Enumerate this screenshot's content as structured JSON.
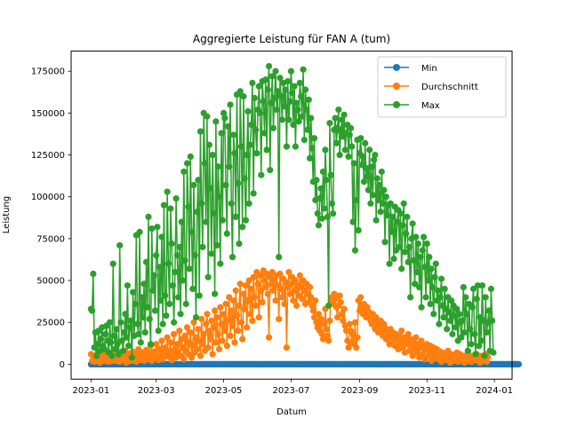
{
  "chart_data": {
    "type": "line",
    "title": "Aggregierte Leistung für FAN A (tum)",
    "xlabel": "Datum",
    "ylabel": "Leistung",
    "xlim": [
      "2022-12-14",
      "2024-01-17"
    ],
    "ylim": [
      -8900,
      187000
    ],
    "x_ticks": [
      "2023-01",
      "2023-03",
      "2023-05",
      "2023-07",
      "2023-09",
      "2023-11",
      "2024-01"
    ],
    "y_ticks": [
      0,
      25000,
      50000,
      75000,
      100000,
      125000,
      150000,
      175000
    ],
    "y_tick_labels": [
      "0",
      "25000",
      "50000",
      "75000",
      "100000",
      "125000",
      "150000",
      "175000"
    ],
    "grid": false,
    "legend_position": "top-right",
    "markers": "circle",
    "x_start": "2023-01-01",
    "x_end": "2023-12-31",
    "series": [
      {
        "name": "Min",
        "color": "#1f77b4",
        "values": [
          0,
          0,
          0,
          0,
          0,
          0,
          0,
          0,
          0,
          0,
          0,
          0,
          0,
          0,
          0,
          0,
          0,
          0,
          0,
          0,
          0,
          0,
          0,
          0,
          0,
          0,
          0,
          0,
          0,
          0,
          0,
          0,
          0,
          0,
          0,
          0,
          0,
          0,
          0,
          0,
          0,
          0,
          0,
          0,
          0,
          0,
          0,
          0,
          0,
          0,
          0,
          0,
          0,
          0,
          0,
          0,
          0,
          0,
          0,
          0,
          0,
          0,
          0,
          0,
          0,
          0,
          0,
          0,
          0,
          0,
          0,
          0,
          0,
          0,
          0,
          0,
          0,
          0,
          0,
          0,
          0,
          0,
          0,
          0,
          0,
          0,
          0,
          0,
          0,
          0,
          0,
          0,
          0,
          0,
          0,
          0,
          0,
          0,
          0,
          0,
          0,
          0,
          0,
          0,
          0,
          0,
          0,
          0,
          0,
          0,
          0,
          0,
          0,
          0,
          0,
          0,
          0,
          0,
          0,
          0,
          0,
          0,
          0,
          0,
          0,
          0,
          0,
          0,
          0,
          0,
          0,
          0,
          0,
          0,
          0,
          0,
          0,
          0,
          0,
          0,
          0,
          0,
          0,
          0,
          0,
          0,
          0,
          0,
          0,
          0,
          0,
          0,
          0,
          0,
          0,
          0,
          0,
          0,
          0,
          0,
          0,
          0,
          0,
          0,
          0,
          0,
          0,
          0,
          0,
          0,
          0,
          0,
          0,
          0,
          0,
          0,
          0,
          0,
          0,
          0,
          0,
          0,
          0,
          0,
          0,
          0,
          0,
          0,
          0,
          0,
          0,
          0,
          0,
          0,
          0,
          0,
          0,
          0,
          0,
          0,
          0,
          0,
          0,
          0,
          0,
          0,
          0,
          0,
          0,
          0,
          0,
          0,
          0,
          0,
          0,
          0,
          0,
          0,
          0,
          0,
          0,
          0,
          0,
          0,
          0,
          0,
          0,
          0,
          0,
          0,
          0,
          0,
          0,
          0,
          0,
          0,
          0,
          0,
          0,
          0,
          0,
          0,
          0,
          0,
          0,
          0,
          0,
          0,
          0,
          0,
          0,
          0,
          0,
          0,
          0,
          0,
          0,
          0,
          0,
          0,
          0,
          0,
          0,
          0,
          0,
          0,
          0,
          0,
          0,
          0,
          0,
          0,
          0,
          0,
          0,
          0,
          0,
          0,
          0,
          0,
          0,
          0,
          0,
          0,
          0,
          0,
          0,
          0,
          0,
          0,
          0,
          0,
          0,
          0,
          0,
          0,
          0,
          0,
          0,
          0,
          0,
          0,
          0,
          0,
          0,
          0,
          0,
          0,
          0,
          0,
          0,
          0,
          0,
          0,
          0,
          0,
          0,
          0,
          0,
          0,
          0,
          0,
          0,
          0,
          0,
          0,
          0,
          0,
          0,
          0,
          0,
          0,
          0,
          0,
          0,
          0,
          0,
          0,
          0,
          0,
          0,
          0,
          0,
          0,
          0,
          0,
          0,
          0,
          0,
          0,
          0,
          0,
          0,
          0,
          0,
          0,
          0,
          0,
          0,
          0,
          0,
          0,
          0,
          0,
          0,
          0,
          0,
          0,
          0,
          0,
          0,
          0,
          0,
          0,
          0,
          0,
          0,
          0,
          0,
          0,
          0,
          0,
          0,
          0,
          0,
          0,
          0,
          0
        ]
      },
      {
        "name": "Durchschnitt",
        "color": "#ff7f0e",
        "values": [
          6000,
          2000,
          5000,
          1500,
          4000,
          3000,
          7000,
          2500,
          1000,
          4500,
          6000,
          3000,
          2000,
          5000,
          8000,
          3500,
          1500,
          6500,
          4000,
          2000,
          5500,
          9000,
          3000,
          2000,
          4000,
          7000,
          1500,
          3500,
          6000,
          2500,
          5000,
          8000,
          1000,
          4000,
          3000,
          6500,
          2000,
          5500,
          7500,
          3000,
          4500,
          1500,
          6000,
          9000,
          2500,
          4000,
          7000,
          3500,
          2000,
          5000,
          8500,
          3000,
          6000,
          4500,
          11000,
          2000,
          5000,
          7500,
          3500,
          12000,
          4000,
          2500,
          9000,
          6000,
          14000,
          3000,
          7000,
          10000,
          5000,
          16000,
          4500,
          8000,
          13000,
          2500,
          6000,
          18000,
          9000,
          4000,
          12000,
          7000,
          20000,
          5000,
          15000,
          10000,
          3000,
          17000,
          8000,
          22000,
          6000,
          13000,
          19000,
          4000,
          11000,
          25000,
          7000,
          16000,
          9000,
          21000,
          14000,
          5000,
          27000,
          12000,
          18000,
          8000,
          24000,
          30000,
          10000,
          20000,
          15000,
          26000,
          6000,
          22000,
          32000,
          13000,
          28000,
          18000,
          9000,
          34000,
          24000,
          14000,
          30000,
          20000,
          36000,
          11000,
          26000,
          40000,
          17000,
          32000,
          23000,
          38000,
          13000,
          44000,
          29000,
          20000,
          35000,
          48000,
          25000,
          15000,
          42000,
          33000,
          47000,
          22000,
          38000,
          50000,
          30000,
          45000,
          26000,
          52000,
          40000,
          35000,
          55000,
          48000,
          28000,
          53000,
          44000,
          37000,
          56000,
          50000,
          46000,
          54000,
          42000,
          16000,
          52000,
          48000,
          55000,
          44000,
          50000,
          38000,
          53000,
          47000,
          27000,
          54000,
          45000,
          40000,
          51000,
          36000,
          49000,
          10000,
          46000,
          55000,
          42000,
          48000,
          52000,
          38000,
          44000,
          50000,
          35000,
          47000,
          41000,
          53000,
          46000,
          39000,
          50000,
          44000,
          36000,
          48000,
          42000,
          37000,
          46000,
          40000,
          35000,
          32000,
          28000,
          38000,
          25000,
          22000,
          30000,
          20000,
          27000,
          18000,
          15000,
          24000,
          33000,
          21000,
          17000,
          14000,
          26000,
          38000,
          40000,
          36000,
          42000,
          39000,
          34000,
          28000,
          35000,
          41000,
          37000,
          30000,
          26000,
          33000,
          23000,
          20000,
          14000,
          10000,
          24000,
          20000,
          13000,
          18000,
          12000,
          25000,
          10000,
          16000,
          38000,
          32000,
          40000,
          35000,
          30000,
          36000,
          33000,
          28000,
          34000,
          29000,
          31000,
          26000,
          24000,
          30000,
          27000,
          21000,
          28000,
          25000,
          19000,
          23000,
          26000,
          20000,
          17000,
          24000,
          22000,
          15000,
          20000,
          18000,
          12000,
          21000,
          16000,
          19000,
          14000,
          11000,
          18000,
          15000,
          9000,
          17000,
          13000,
          20000,
          10000,
          16000,
          7000,
          14000,
          12000,
          18000,
          8000,
          15000,
          11000,
          5000,
          13000,
          9000,
          16000,
          7000,
          12000,
          4000,
          10000,
          14000,
          6000,
          11000,
          3000,
          9000,
          12000,
          5000,
          8000,
          11000,
          2000,
          7000,
          10000,
          4000,
          6000,
          9000,
          3000,
          8000,
          5000,
          1500,
          7000,
          4000,
          6000,
          2500,
          5000,
          8000,
          3000,
          1000,
          6000,
          4000,
          2000,
          5000,
          3000,
          7000,
          1500,
          4000,
          6000,
          2000,
          3500,
          5000,
          1000,
          4500,
          3000,
          6000,
          2000,
          4000,
          1500,
          5000,
          3000,
          2500,
          4000,
          6000,
          2000,
          3500,
          1000,
          5000,
          4000,
          3000,
          2000,
          6000,
          1500,
          4500
        ]
      },
      {
        "name": "Max",
        "color": "#2ca02c",
        "values": [
          33000,
          32000,
          54000,
          10000,
          19000,
          5000,
          12000,
          20000,
          8000,
          15000,
          22000,
          11000,
          9000,
          18000,
          23000,
          14000,
          7000,
          25000,
          13000,
          5000,
          60000,
          17000,
          9000,
          21000,
          12000,
          6000,
          71000,
          25000,
          14000,
          8000,
          19000,
          30000,
          16000,
          47000,
          11000,
          22000,
          26000,
          4000,
          43000,
          17000,
          36000,
          77000,
          24000,
          18000,
          79000,
          13000,
          40000,
          28000,
          48000,
          19000,
          61000,
          34000,
          88000,
          27000,
          12000,
          81000,
          44000,
          53000,
          32000,
          65000,
          82000,
          20000,
          58000,
          38000,
          76000,
          24000,
          95000,
          41000,
          29000,
          103000,
          60000,
          36000,
          93000,
          72000,
          47000,
          25000,
          55000,
          99000,
          65000,
          40000,
          70000,
          30000,
          85000,
          50000,
          115000,
          62000,
          36000,
          120000,
          94000,
          57000,
          124000,
          79000,
          45000,
          107000,
          65000,
          28000,
          91000,
          110000,
          41000,
          139000,
          96000,
          70000,
          150000,
          120000,
          85000,
          148000,
          52000,
          131000,
          105000,
          66000,
          125000,
          90000,
          42000,
          145000,
          71000,
          118000,
          100000,
          60000,
          138000,
          86000,
          150000,
          147000,
          107000,
          78000,
          142000,
          118000,
          155000,
          96000,
          64000,
          137000,
          126000,
          88000,
          161000,
          108000,
          72000,
          163000,
          130000,
          82000,
          160000,
          111000,
          86000,
          125000,
          151000,
          96000,
          131000,
          143000,
          168000,
          102000,
          159000,
          140000,
          126000,
          152000,
          166000,
          150000,
          113000,
          169000,
          157000,
          138000,
          170000,
          128000,
          164000,
          178000,
          116000,
          156000,
          172000,
          141000,
          159000,
          175000,
          152000,
          163000,
          64000,
          171000,
          160000,
          146000,
          168000,
          154000,
          164000,
          130000,
          169000,
          146000,
          157000,
          175000,
          162000,
          143000,
          166000,
          130000,
          156000,
          152000,
          145000,
          168000,
          160000,
          148000,
          176000,
          134000,
          164000,
          152000,
          140000,
          158000,
          123000,
          147000,
          129000,
          109000,
          135000,
          98000,
          110000,
          90000,
          83000,
          99000,
          105000,
          87000,
          115000,
          93000,
          128000,
          110000,
          88000,
          35000,
          144000,
          113000,
          96000,
          90000,
          140000,
          147000,
          132000,
          141000,
          152000,
          125000,
          139000,
          146000,
          136000,
          149000,
          128000,
          138000,
          143000,
          124000,
          137000,
          141000,
          130000,
          85000,
          120000,
          68000,
          98000,
          134000,
          80000,
          126000,
          135000,
          119000,
          124000,
          109000,
          132000,
          112000,
          117000,
          104000,
          128000,
          96000,
          118000,
          101000,
          122000,
          125000,
          86000,
          111000,
          98000,
          107000,
          91000,
          115000,
          96000,
          104000,
          73000,
          100000,
          89000,
          95000,
          60000,
          96000,
          79000,
          88000,
          63000,
          94000,
          68000,
          85000,
          92000,
          70000,
          90000,
          57000,
          83000,
          96000,
          67000,
          78000,
          88000,
          61000,
          70000,
          40000,
          75000,
          84000,
          62000,
          48000,
          76000,
          55000,
          72000,
          46000,
          64000,
          34000,
          68000,
          76000,
          58000,
          40000,
          72000,
          50000,
          64000,
          36000,
          57000,
          46000,
          30000,
          52000,
          60000,
          38000,
          44000,
          24000,
          40000,
          51000,
          35000,
          28000,
          45000,
          33000,
          21000,
          40000,
          31000,
          26000,
          38000,
          18000,
          35000,
          29000,
          22000,
          33000,
          14000,
          30000,
          25000,
          16000,
          26000,
          46000,
          19000,
          40000,
          30000,
          8000,
          36000,
          21000,
          12000,
          34000,
          45000,
          18000,
          6000,
          39000,
          47000,
          11000,
          28000,
          14000,
          47000,
          26000,
          5000,
          40000,
          19000,
          25000,
          32000,
          8000,
          45000,
          26000,
          7000
        ]
      }
    ]
  }
}
